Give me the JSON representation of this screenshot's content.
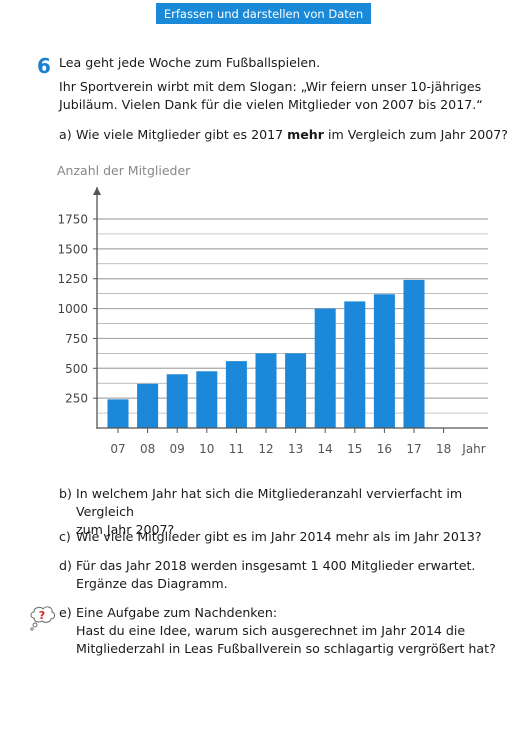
{
  "header": {
    "title": "Erfassen und darstellen von Daten"
  },
  "task": {
    "number": "6",
    "intro": "Lea geht jede Woche zum Fußballspielen.",
    "slogan_line1": "Ihr Sportverein wirbt mit dem Slogan: „Wir feiern unser 10-jähriges",
    "slogan_line2": "Jubiläum. Vielen Dank für die vielen Mitglieder von 2007 bis 2017.“",
    "a": {
      "label": "a)",
      "pre": "Wie viele Mitglieder gibt es 2017 ",
      "bold": "mehr",
      "post": " im Vergleich zum Jahr 2007?"
    },
    "b": {
      "label": "b)",
      "line1": "In welchem Jahr hat sich die Mitgliederanzahl vervierfacht im Vergleich",
      "line2": "zum Jahr 2007?"
    },
    "c": {
      "label": "c)",
      "line1": "Wie viele Mitglieder gibt es im Jahr 2014 mehr als im Jahr 2013?"
    },
    "d": {
      "label": "d)",
      "line1": "Für das Jahr 2018 werden insgesamt 1 400 Mitglieder erwartet.",
      "line2": "Ergänze das Diagramm."
    },
    "e": {
      "label": "e)",
      "line1": "Eine Aufgabe zum Nachdenken:",
      "line2": "Hast du eine Idee, warum sich ausgerechnet im Jahr 2014 die",
      "line3": "Mitgliederzahl in Leas Fußballverein so schlagartig vergrößert hat?"
    }
  },
  "think_icon": {
    "glyph": "?",
    "icon": "thought-bubble-question-icon"
  },
  "chart_data": {
    "type": "bar",
    "ylabel": "Anzahl der Mitglieder",
    "xlabel": "Jahr",
    "categories": [
      "07",
      "08",
      "09",
      "10",
      "11",
      "12",
      "13",
      "14",
      "15",
      "16",
      "17",
      "18"
    ],
    "values": [
      240,
      370,
      450,
      475,
      560,
      625,
      625,
      1000,
      1060,
      1120,
      1240,
      null
    ],
    "yticks": [
      250,
      500,
      750,
      1000,
      1250,
      1500,
      1750
    ],
    "ylim": [
      0,
      1750
    ],
    "grid": true,
    "bar_color": "#1b88d9",
    "grid_color": "#a9a9a9"
  }
}
